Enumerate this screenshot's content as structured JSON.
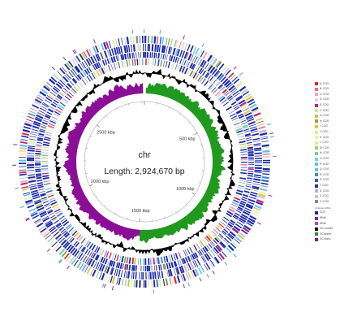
{
  "genome": {
    "name": "chr",
    "length_label": "Length: 2,924,670 bp",
    "length_bp": 2924670
  },
  "scale_labels": [
    {
      "text": "500 kbp",
      "bp": 500000
    },
    {
      "text": "1000 kbp",
      "bp": 1000000
    },
    {
      "text": "1500 kbp",
      "bp": 1500000
    },
    {
      "text": "2000 kbp",
      "bp": 2000000
    },
    {
      "text": "2500 kbp",
      "bp": 2500000
    }
  ],
  "colors": {
    "gc_skew_positive": "#1f9a1f",
    "gc_skew_negative": "#8a0f96",
    "gc_content": "#000000",
    "cds_outer": "#1c2aa8",
    "rna": "#4aa3d8",
    "scale_ring": "#b5b5b5"
  },
  "cog_legend": [
    {
      "label": "A: COG",
      "color": "#e8242b"
    },
    {
      "label": "B: COG",
      "color": "#f26b7a"
    },
    {
      "label": "C: COG",
      "color": "#f4a3b7"
    },
    {
      "label": "D: COG",
      "color": "#e5d0e0"
    },
    {
      "label": "E: COG",
      "color": "#c41e7d"
    },
    {
      "label": "F: COG",
      "color": "#d0e7a3"
    },
    {
      "label": "G: COG",
      "color": "#bdc950"
    },
    {
      "label": "H: COG",
      "color": "#9b9b35"
    },
    {
      "label": "I: COG",
      "color": "#e6c244"
    },
    {
      "label": "J: COG",
      "color": "#f7e08d"
    },
    {
      "label": "K: COG",
      "color": "#f3f19c"
    },
    {
      "label": "L: COG",
      "color": "#d9f0a0"
    },
    {
      "label": "M: COG",
      "color": "#9fd15a"
    },
    {
      "label": "N: COG",
      "color": "#7fc8a0"
    },
    {
      "label": "O: COG",
      "color": "#6fd6d0"
    },
    {
      "label": "P: COG",
      "color": "#4fc7e6"
    },
    {
      "label": "Q: COG",
      "color": "#7fb6e6"
    },
    {
      "label": "R: COG",
      "color": "#3d86c6"
    },
    {
      "label": "S: COG",
      "color": "#2d5db8"
    },
    {
      "label": "T: COG",
      "color": "#2c2c9a"
    },
    {
      "label": "U: COG",
      "color": "#a9b4e6"
    },
    {
      "label": "V: COG",
      "color": "#c9c9c9"
    },
    {
      "label": "X: COG",
      "color": "#8a8a8a"
    }
  ],
  "other_legend_title": "Unknown RNA",
  "other_legend": [
    {
      "label": "CDS",
      "color": "#1c2aa8"
    },
    {
      "label": "tRNA",
      "color": "#7b2b9c"
    },
    {
      "label": "rRNA",
      "color": "#b34b9b"
    },
    {
      "label": "GC content",
      "color": "#000000"
    },
    {
      "label": "GC skew+",
      "color": "#1f9a1f"
    },
    {
      "label": "GC skew-",
      "color": "#8a0f96"
    }
  ]
}
